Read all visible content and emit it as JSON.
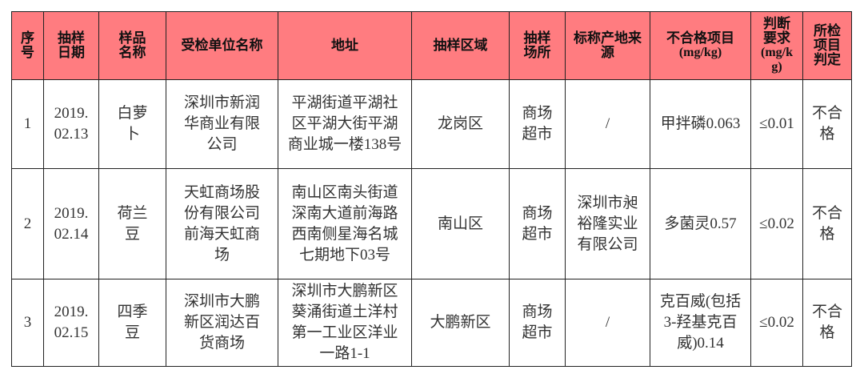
{
  "header": {
    "columns": [
      "序号",
      "抽样日期",
      "样品名称",
      "受检单位名称",
      "地址",
      "抽样区域",
      "抽样场所",
      "标称产地来源",
      "不合格项目",
      "判断要求",
      "所检项目判定"
    ],
    "unit_fail": "(mg/kg)",
    "unit_req": "(mg/kg)"
  },
  "rows": [
    [
      "1",
      "2019.02.13",
      "白萝卜",
      "深圳市新润华商业有限公司",
      "平湖街道平湖社区平湖大街平湖商业城一楼138号",
      "龙岗区",
      "商场超市",
      "/",
      "甲拌磷0.063",
      "≤0.01",
      "不合格"
    ],
    [
      "2",
      "2019.02.14",
      "荷兰豆",
      "天虹商场股份有限公司前海天虹商场",
      "南山区南头街道深南大道前海路西南侧星海名城七期地下03号",
      "南山区",
      "商场超市",
      "深圳市昶裕隆实业有限公司",
      "多菌灵0.57",
      "≤0.02",
      "不合格"
    ],
    [
      "3",
      "2019.02.15",
      "四季豆",
      "深圳市大鹏新区润达百货商场",
      "深圳市大鹏新区葵涌街道土洋村第一工业区洋业一路1-1",
      "大鹏新区",
      "商场超市",
      "/",
      "克百威(包括3-羟基克百威)0.14",
      "≤0.02",
      "不合格"
    ]
  ],
  "colors": {
    "header_bg": "#ff7c80",
    "border": "#222222"
  }
}
